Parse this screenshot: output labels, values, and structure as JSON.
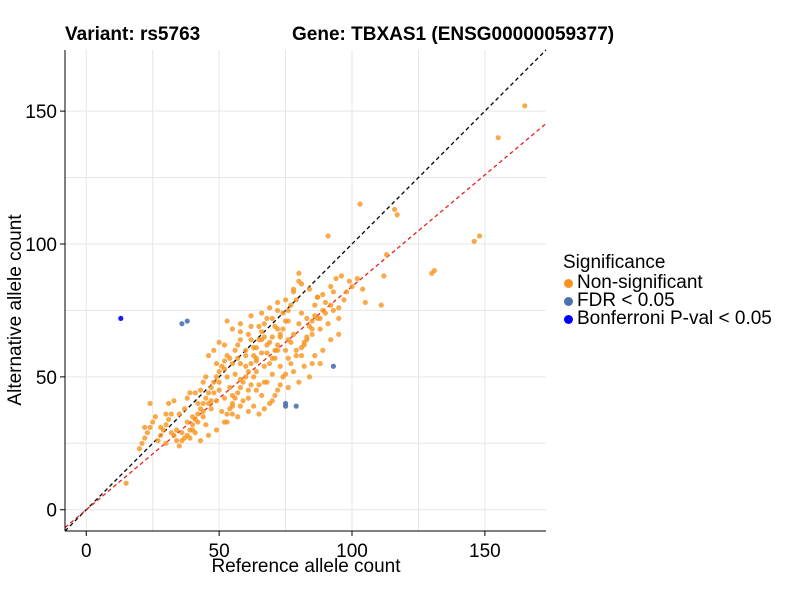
{
  "header": {
    "variant_title": "Variant: rs5763",
    "gene_title": "Gene: TBXAS1 (ENSG00000059377)"
  },
  "legend": {
    "title": "Significance",
    "items": [
      {
        "label": "Non-significant",
        "color": "#F7941D"
      },
      {
        "label": "FDR < 0.05",
        "color": "#4A72B0"
      },
      {
        "label": "Bonferroni P-val < 0.05",
        "color": "#0000FF"
      }
    ]
  },
  "chart_data": {
    "type": "scatter",
    "xlabel": "Reference allele count",
    "ylabel": "Alternative allele count",
    "xlim": [
      -8,
      173
    ],
    "ylim": [
      -8,
      173
    ],
    "xticks": [
      0,
      50,
      100,
      150
    ],
    "yticks": [
      0,
      50,
      100,
      150
    ],
    "grid": true,
    "reference_lines": [
      {
        "name": "identity",
        "slope": 1.0,
        "intercept": 0,
        "color": "#000000",
        "style": "dashed"
      },
      {
        "name": "fitted",
        "slope": 0.84,
        "intercept": 0,
        "color": "#E8201E",
        "style": "dashed"
      }
    ],
    "series": [
      {
        "name": "Non-significant",
        "color": "#F7941D",
        "points": [
          [
            165,
            152
          ],
          [
            155,
            140
          ],
          [
            148,
            103
          ],
          [
            146,
            101
          ],
          [
            131,
            90
          ],
          [
            130,
            89
          ],
          [
            117,
            111
          ],
          [
            116,
            113
          ],
          [
            112,
            88
          ],
          [
            111,
            77
          ],
          [
            113,
            96
          ],
          [
            103,
            115
          ],
          [
            104,
            83
          ],
          [
            105,
            78
          ],
          [
            102,
            87
          ],
          [
            100,
            84
          ],
          [
            97,
            79
          ],
          [
            96,
            88
          ],
          [
            94,
            87
          ],
          [
            93,
            82
          ],
          [
            91,
            103
          ],
          [
            92,
            77
          ],
          [
            90,
            74
          ],
          [
            88,
            72
          ],
          [
            87,
            80
          ],
          [
            86,
            77
          ],
          [
            85,
            71
          ],
          [
            84,
            69
          ],
          [
            83,
            64
          ],
          [
            82,
            62
          ],
          [
            80,
            89
          ],
          [
            80,
            86
          ],
          [
            78,
            83
          ],
          [
            79,
            79
          ],
          [
            77,
            77
          ],
          [
            76,
            75
          ],
          [
            75,
            71
          ],
          [
            74,
            68
          ],
          [
            73,
            65
          ],
          [
            72,
            62
          ],
          [
            71,
            60
          ],
          [
            70,
            57
          ],
          [
            69,
            55
          ],
          [
            68,
            72
          ],
          [
            67,
            70
          ],
          [
            66,
            67
          ],
          [
            65,
            64
          ],
          [
            64,
            61
          ],
          [
            63,
            58
          ],
          [
            62,
            55
          ],
          [
            61,
            52
          ],
          [
            60,
            50
          ],
          [
            59,
            48
          ],
          [
            58,
            46
          ],
          [
            57,
            44
          ],
          [
            56,
            42
          ],
          [
            55,
            40
          ],
          [
            54,
            38
          ],
          [
            53,
            36
          ],
          [
            52,
            56
          ],
          [
            51,
            54
          ],
          [
            50,
            52
          ],
          [
            49,
            50
          ],
          [
            48,
            48
          ],
          [
            47,
            46
          ],
          [
            46,
            44
          ],
          [
            45,
            42
          ],
          [
            44,
            40
          ],
          [
            43,
            38
          ],
          [
            42,
            36
          ],
          [
            41,
            34
          ],
          [
            40,
            32
          ],
          [
            39,
            30
          ],
          [
            38,
            28
          ],
          [
            37,
            27
          ],
          [
            36,
            26
          ],
          [
            35,
            24
          ],
          [
            34,
            30
          ],
          [
            33,
            28
          ],
          [
            32,
            36
          ],
          [
            31,
            34
          ],
          [
            30,
            32
          ],
          [
            29,
            30
          ],
          [
            28,
            28
          ],
          [
            27,
            26
          ],
          [
            26,
            35
          ],
          [
            25,
            33
          ],
          [
            24,
            31
          ],
          [
            23,
            29
          ],
          [
            22,
            27
          ],
          [
            21,
            25
          ],
          [
            20,
            23
          ],
          [
            15,
            10
          ],
          [
            22,
            31
          ],
          [
            24,
            40
          ],
          [
            31,
            40
          ],
          [
            39,
            44
          ],
          [
            44,
            48
          ],
          [
            48,
            60
          ],
          [
            52,
            62
          ],
          [
            55,
            68
          ],
          [
            58,
            70
          ],
          [
            62,
            73
          ],
          [
            66,
            74
          ],
          [
            69,
            76
          ],
          [
            72,
            78
          ],
          [
            75,
            79
          ],
          [
            78,
            82
          ],
          [
            81,
            85
          ],
          [
            84,
            83
          ],
          [
            87,
            80
          ],
          [
            90,
            78
          ],
          [
            93,
            75
          ],
          [
            95,
            72
          ],
          [
            91,
            70
          ],
          [
            88,
            68
          ],
          [
            85,
            66
          ],
          [
            82,
            63
          ],
          [
            79,
            60
          ],
          [
            76,
            57
          ],
          [
            73,
            54
          ],
          [
            70,
            51
          ],
          [
            67,
            48
          ],
          [
            64,
            45
          ],
          [
            61,
            42
          ],
          [
            58,
            39
          ],
          [
            55,
            36
          ],
          [
            52,
            33
          ],
          [
            49,
            30
          ],
          [
            46,
            28
          ],
          [
            43,
            26
          ],
          [
            40,
            35
          ],
          [
            37,
            38
          ],
          [
            41,
            44
          ],
          [
            45,
            50
          ],
          [
            49,
            55
          ],
          [
            53,
            58
          ],
          [
            57,
            62
          ],
          [
            61,
            66
          ],
          [
            65,
            69
          ],
          [
            69,
            63
          ],
          [
            73,
            66
          ],
          [
            77,
            63
          ],
          [
            81,
            58
          ],
          [
            85,
            55
          ],
          [
            89,
            60
          ],
          [
            92,
            64
          ],
          [
            95,
            66
          ],
          [
            60,
            58
          ],
          [
            62,
            47
          ],
          [
            64,
            52
          ],
          [
            66,
            43
          ],
          [
            68,
            48
          ],
          [
            70,
            41
          ],
          [
            72,
            45
          ],
          [
            74,
            50
          ],
          [
            76,
            46
          ],
          [
            78,
            52
          ],
          [
            80,
            48
          ],
          [
            82,
            54
          ],
          [
            84,
            50
          ],
          [
            86,
            58
          ],
          [
            88,
            55
          ],
          [
            54,
            46
          ],
          [
            56,
            51
          ],
          [
            58,
            55
          ],
          [
            50,
            45
          ],
          [
            47,
            38
          ],
          [
            44,
            35
          ],
          [
            42,
            40
          ],
          [
            38,
            42
          ],
          [
            35,
            36
          ],
          [
            33,
            41
          ],
          [
            30,
            36
          ],
          [
            28,
            31
          ],
          [
            52,
            42
          ],
          [
            55,
            43
          ],
          [
            58,
            49
          ],
          [
            61,
            45
          ],
          [
            63,
            39
          ],
          [
            65,
            36
          ],
          [
            67,
            38
          ],
          [
            69,
            40
          ],
          [
            71,
            43
          ],
          [
            73,
            47
          ],
          [
            75,
            51
          ],
          [
            77,
            55
          ],
          [
            79,
            58
          ],
          [
            81,
            61
          ],
          [
            83,
            65
          ],
          [
            85,
            68
          ],
          [
            87,
            72
          ],
          [
            89,
            75
          ],
          [
            64,
            56
          ],
          [
            66,
            59
          ],
          [
            68,
            62
          ],
          [
            70,
            65
          ],
          [
            72,
            68
          ],
          [
            60,
            60
          ],
          [
            62,
            64
          ],
          [
            58,
            64
          ],
          [
            56,
            60
          ],
          [
            54,
            57
          ],
          [
            52,
            53
          ],
          [
            50,
            48
          ],
          [
            48,
            44
          ],
          [
            46,
            40
          ],
          [
            44,
            37
          ],
          [
            42,
            33
          ],
          [
            40,
            30
          ],
          [
            38,
            33
          ],
          [
            36,
            29
          ],
          [
            34,
            26
          ],
          [
            32,
            29
          ],
          [
            30,
            25
          ],
          [
            53,
            71
          ],
          [
            58,
            67
          ],
          [
            46,
            58
          ],
          [
            50,
            63
          ],
          [
            57,
            57
          ],
          [
            63,
            50
          ],
          [
            67,
            54
          ],
          [
            71,
            57
          ],
          [
            75,
            60
          ],
          [
            65,
            47
          ],
          [
            59,
            41
          ],
          [
            55,
            39
          ],
          [
            51,
            37
          ],
          [
            47,
            41
          ],
          [
            43,
            45
          ],
          [
            49,
            41
          ],
          [
            61,
            37
          ],
          [
            57,
            35
          ],
          [
            53,
            33
          ],
          [
            45,
            32
          ],
          [
            41,
            29
          ],
          [
            39,
            27
          ],
          [
            62,
            69
          ],
          [
            66,
            64
          ],
          [
            70,
            72
          ],
          [
            74,
            74
          ],
          [
            80,
            70
          ],
          [
            83,
            72
          ],
          [
            86,
            73
          ],
          [
            89,
            81
          ],
          [
            92,
            84
          ],
          [
            95,
            76
          ],
          [
            98,
            82
          ],
          [
            99,
            86
          ],
          [
            78,
            66
          ],
          [
            76,
            71
          ],
          [
            72,
            75
          ],
          [
            81,
            74
          ],
          [
            60,
            54
          ],
          [
            64,
            57
          ],
          [
            68,
            59
          ],
          [
            72,
            60
          ],
          [
            76,
            64
          ],
          [
            63,
            61
          ],
          [
            67,
            65
          ],
          [
            71,
            69
          ],
          [
            55,
            55
          ],
          [
            53,
            50
          ]
        ]
      },
      {
        "name": "FDR < 0.05",
        "color": "#4A72B0",
        "points": [
          [
            36,
            70
          ],
          [
            38,
            71
          ],
          [
            75,
            40
          ],
          [
            75,
            39
          ],
          [
            79,
            39
          ],
          [
            93,
            54
          ]
        ]
      },
      {
        "name": "Bonferroni P-val < 0.05",
        "color": "#0000FF",
        "points": [
          [
            13,
            72
          ]
        ]
      }
    ]
  }
}
